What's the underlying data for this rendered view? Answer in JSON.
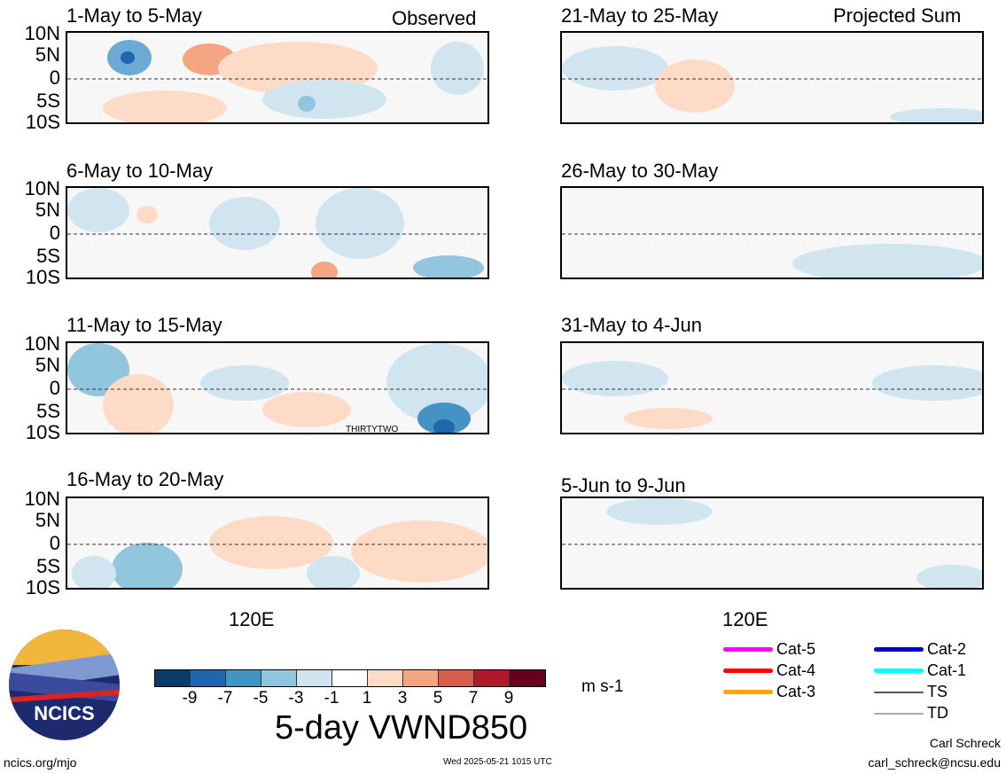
{
  "panels": [
    {
      "title": "1-May to 5-May",
      "corner": "Observed"
    },
    {
      "title": "6-May to 10-May",
      "corner": ""
    },
    {
      "title": "11-May to 15-May",
      "corner": ""
    },
    {
      "title": "16-May to 20-May",
      "corner": ""
    },
    {
      "title": "21-May to 25-May",
      "corner": "Projected Sum"
    },
    {
      "title": "26-May to 30-May",
      "corner": ""
    },
    {
      "title": "31-May to 4-Jun",
      "corner": ""
    },
    {
      "title": "5-Jun to 9-Jun",
      "corner": ""
    }
  ],
  "y_ticks": [
    "10N",
    "5N",
    "0",
    "5S",
    "10S"
  ],
  "x_tick": "120E",
  "annotation": "THIRTYTWO",
  "colorbar": {
    "colors": [
      "#0b3b68",
      "#2166ac",
      "#4393c3",
      "#92c5de",
      "#d1e5f0",
      "#ffffff",
      "#fddbc7",
      "#f4a582",
      "#d6604d",
      "#b2182b",
      "#67001f"
    ],
    "ticks": [
      "-9",
      "-7",
      "-5",
      "-3",
      "-1",
      "1",
      "3",
      "5",
      "7",
      "9"
    ],
    "units": "m s-1"
  },
  "title": "5-day VWND850",
  "legend": [
    {
      "label": "Cat-5",
      "color": "#ff00ff"
    },
    {
      "label": "Cat-4",
      "color": "#ff0000"
    },
    {
      "label": "Cat-3",
      "color": "#ffa500"
    },
    {
      "label": "Cat-2",
      "color": "#0000cc"
    },
    {
      "label": "Cat-1",
      "color": "#00ffff"
    },
    {
      "label": "TS",
      "color": "#555555"
    },
    {
      "label": "TD",
      "color": "#aaaaaa"
    }
  ],
  "logo_text": "NCICS",
  "footer": {
    "left": "ncics.org/mjo",
    "center": "Wed 2025-05-21 1015 UTC",
    "author": "Carl Schreck",
    "email": "carl_schreck@ncsu.edu"
  }
}
